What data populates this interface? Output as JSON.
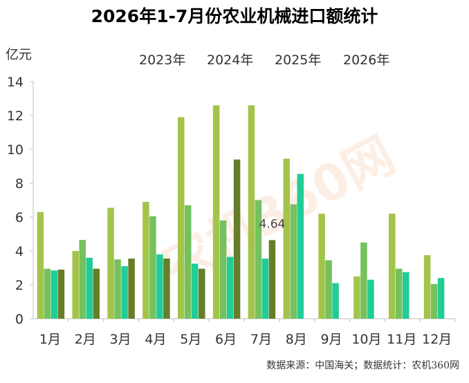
{
  "title": "2026年1-7月份农业机械进口额统计",
  "unit_label": "亿元",
  "source_note": "数据来源：中国海关；数据统计：农机360网",
  "watermark_text": "农机360网",
  "chart_data": {
    "type": "bar",
    "categories": [
      "1月",
      "2月",
      "3月",
      "4月",
      "5月",
      "6月",
      "7月",
      "8月",
      "9月",
      "10月",
      "11月",
      "12月"
    ],
    "ylim": [
      0,
      14
    ],
    "yticks": [
      0,
      2,
      4,
      6,
      8,
      10,
      12,
      14
    ],
    "grid": false,
    "legend_placement": "top",
    "series": [
      {
        "name": "2023年",
        "color": "#a3c44a",
        "values": [
          6.3,
          4.0,
          6.55,
          6.9,
          11.9,
          12.6,
          12.6,
          9.45,
          6.2,
          2.5,
          6.2,
          3.75
        ]
      },
      {
        "name": "2024年",
        "color": "#74c15e",
        "values": [
          2.95,
          4.65,
          3.5,
          6.05,
          6.7,
          5.8,
          7.0,
          6.75,
          3.45,
          4.5,
          2.95,
          2.05
        ]
      },
      {
        "name": "2025年",
        "color": "#22cc96",
        "values": [
          2.85,
          3.6,
          3.1,
          3.8,
          3.25,
          3.65,
          3.55,
          8.55,
          2.1,
          2.3,
          2.75,
          2.4
        ]
      },
      {
        "name": "2026年",
        "color": "#667d2a",
        "values": [
          2.9,
          2.95,
          3.55,
          3.55,
          2.95,
          9.4,
          4.64,
          null,
          null,
          null,
          null,
          null
        ]
      }
    ],
    "annotations": [
      {
        "category": "7月",
        "series": "2026年",
        "text": "4.64"
      }
    ]
  }
}
